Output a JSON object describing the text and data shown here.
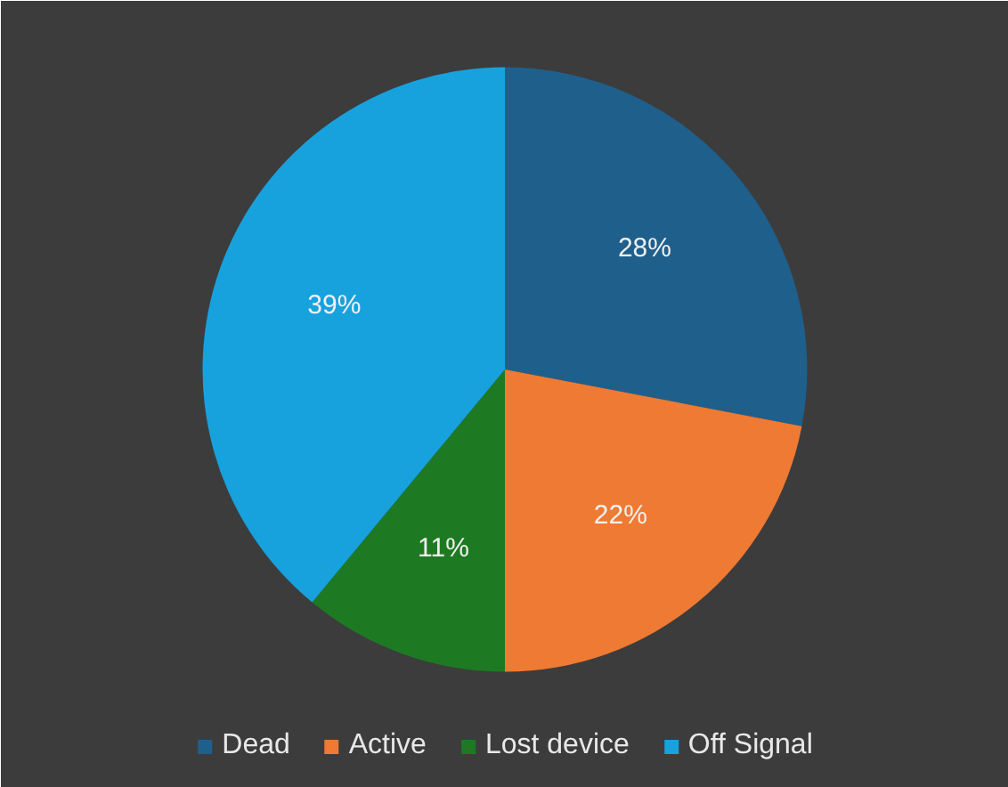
{
  "chart_data": {
    "type": "pie",
    "categories": [
      "Dead",
      "Active",
      "Lost device",
      "Off Signal"
    ],
    "values": [
      28,
      22,
      11,
      39
    ],
    "colors": [
      "#1f5f8c",
      "#ee7a33",
      "#1e7a22",
      "#17a2de"
    ],
    "value_labels": [
      "28%",
      "22%",
      "11%",
      "39%"
    ],
    "legend": "bottom"
  }
}
